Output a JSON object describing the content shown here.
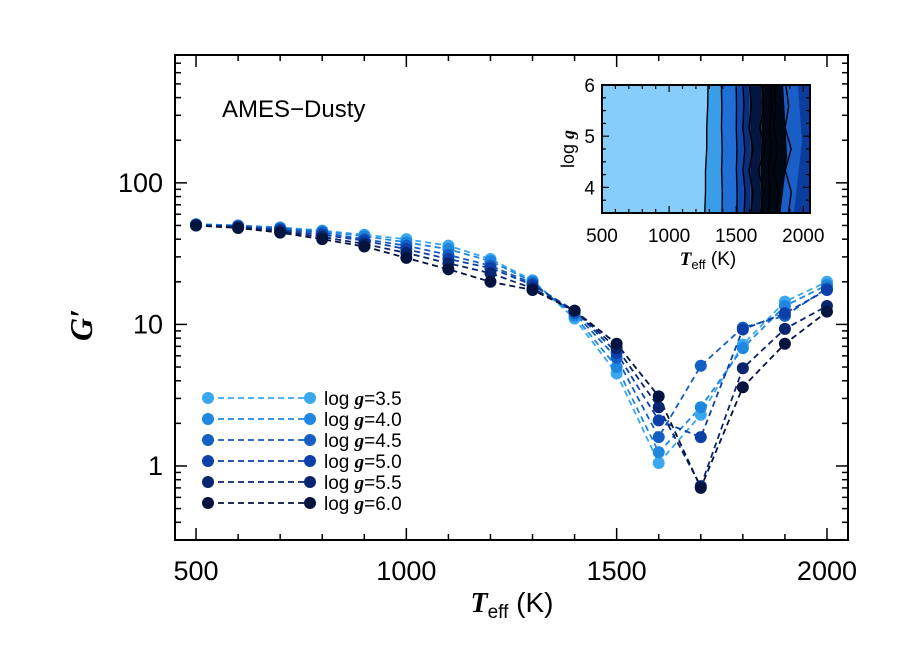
{
  "chart_data": {
    "type": "line",
    "annotation": "AMES−Dusty",
    "xlabel": {
      "symbol": "T",
      "subscript": "eff",
      "unit": " (K)"
    },
    "ylabel": {
      "symbol": "G′"
    },
    "xlim": [
      450,
      2050
    ],
    "ylim": [
      0.3,
      800
    ],
    "yscale": "log",
    "x_ticks": [
      500,
      1000,
      1500,
      2000
    ],
    "y_ticks": [
      {
        "value": 1,
        "label": "1"
      },
      {
        "value": 10,
        "label": "10"
      },
      {
        "value": 100,
        "label": "100"
      }
    ],
    "legend_position": "bottom-left",
    "legend_prefix": "log ",
    "legend_symbol": "g",
    "x": [
      500,
      600,
      700,
      800,
      900,
      1000,
      1100,
      1200,
      1300,
      1400,
      1500,
      1600,
      1700,
      1800,
      1900,
      2000
    ],
    "series": [
      {
        "name": "=3.5",
        "color": "#3aa8ef",
        "values": [
          51,
          50,
          48.5,
          46,
          43,
          40,
          36,
          29,
          20.5,
          11,
          4.5,
          1.05,
          2.3,
          7.2,
          14.5,
          20
        ]
      },
      {
        "name": "=4.0",
        "color": "#1f87e0",
        "values": [
          51,
          50,
          48,
          45.5,
          42,
          38,
          34,
          28,
          20,
          11.5,
          5,
          1.25,
          2.6,
          6.8,
          13.5,
          19
        ]
      },
      {
        "name": "=4.5",
        "color": "#135fc4",
        "values": [
          50.5,
          49.5,
          47.5,
          44.5,
          40,
          36,
          31,
          26,
          19.5,
          12,
          5.8,
          1.6,
          5.1,
          9.5,
          11.5,
          18
        ]
      },
      {
        "name": "=5.0",
        "color": "#0c3fa8",
        "values": [
          50.5,
          49,
          46.5,
          43,
          39,
          34,
          29,
          25,
          19,
          12.5,
          6.3,
          2.1,
          1.6,
          9.2,
          12,
          17.5
        ]
      },
      {
        "name": "=5.5",
        "color": "#08256f",
        "values": [
          50,
          48.5,
          45.5,
          41.5,
          37,
          32,
          27,
          23,
          18,
          12.5,
          6.8,
          2.6,
          0.72,
          4.9,
          9.3,
          13.5
        ]
      },
      {
        "name": "=6.0",
        "color": "#05133f",
        "values": [
          50,
          48,
          44.5,
          40,
          35.5,
          29.5,
          24.5,
          20,
          17.5,
          12.5,
          7.3,
          3.1,
          0.7,
          3.6,
          7.3,
          12.3
        ]
      }
    ],
    "inset": {
      "type": "contour",
      "xlabel": {
        "symbol": "T",
        "subscript": "eff",
        "unit": " (K)"
      },
      "ylabel": {
        "prefix": "log ",
        "symbol": "g"
      },
      "xlim": [
        500,
        2050
      ],
      "ylim": [
        3.5,
        6.0
      ],
      "x_ticks": [
        500,
        1000,
        1500,
        2000
      ],
      "y_ticks": [
        4,
        5,
        6
      ],
      "band_colors": [
        "#87cdfb",
        "#3a9de8",
        "#1f6fd6",
        "#1048b0",
        "#082e7c",
        "#04163f",
        "#000814"
      ]
    }
  }
}
